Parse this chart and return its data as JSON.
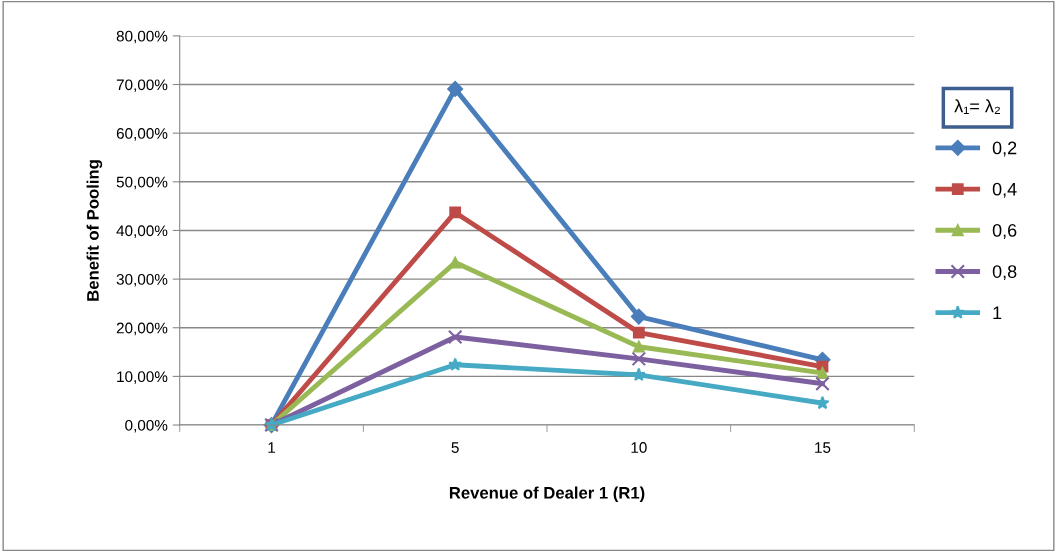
{
  "chart_data": {
    "type": "line",
    "xlabel": "Revenue of Dealer 1 (R1)",
    "ylabel": "Benefit of Pooling",
    "legend_title": "λ₁= λ₂",
    "categories": [
      "1",
      "5",
      "10",
      "15"
    ],
    "series": [
      {
        "name": "0,2",
        "color": "#4a7ebb",
        "marker": "diamond",
        "values": [
          0,
          69.1,
          22.3,
          13.4
        ]
      },
      {
        "name": "0,4",
        "color": "#be4b48",
        "marker": "square",
        "values": [
          0,
          43.7,
          19.0,
          12.0
        ]
      },
      {
        "name": "0,6",
        "color": "#98b954",
        "marker": "triangle",
        "values": [
          0,
          33.4,
          16.1,
          10.7
        ]
      },
      {
        "name": "0,8",
        "color": "#7d60a0",
        "marker": "cross",
        "values": [
          0,
          18.1,
          13.6,
          8.5
        ]
      },
      {
        "name": "1",
        "color": "#46aac5",
        "marker": "star",
        "values": [
          0,
          12.4,
          10.3,
          4.5
        ]
      }
    ],
    "ylim": [
      0,
      80
    ],
    "yticks": [
      {
        "value": 0,
        "label": "0,00%"
      },
      {
        "value": 10,
        "label": "10,00%"
      },
      {
        "value": 20,
        "label": "20,00%"
      },
      {
        "value": 30,
        "label": "30,00%"
      },
      {
        "value": 40,
        "label": "40,00%"
      },
      {
        "value": 50,
        "label": "50,00%"
      },
      {
        "value": 60,
        "label": "60,00%"
      },
      {
        "value": 70,
        "label": "70,00%"
      },
      {
        "value": 80,
        "label": "80,00%"
      }
    ],
    "grid": "y",
    "legend": "right",
    "line_style": "solid"
  }
}
